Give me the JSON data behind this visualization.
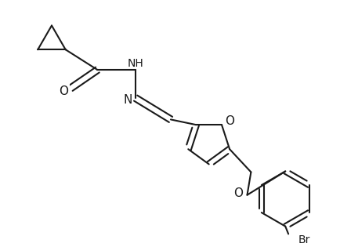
{
  "background_color": "#ffffff",
  "line_color": "#1a1a1a",
  "line_width": 1.5,
  "text_color": "#1a1a1a",
  "font_size": 10,
  "figsize": [
    4.34,
    3.15
  ],
  "dpi": 100,
  "xlim": [
    0,
    4.34
  ],
  "ylim": [
    0,
    3.15
  ]
}
